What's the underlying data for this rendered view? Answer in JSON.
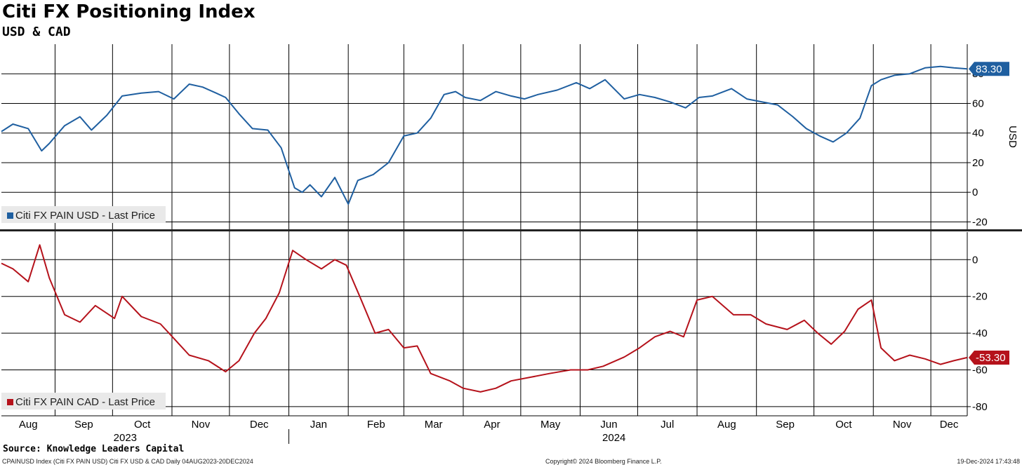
{
  "header": {
    "title": "Citi FX Positioning Index",
    "subtitle": "USD & CAD"
  },
  "footer": {
    "source": "Source: Knowledge Leaders Capital",
    "security": "CPAINUSD Index (Citi FX PAIN USD) Citi FX USD & CAD  Daily 04AUG2023-20DEC2024",
    "copyright": "Copyright© 2024 Bloomberg Finance L.P.",
    "timestamp": "19-Dec-2024 17:43:48"
  },
  "colors": {
    "usd": "#1f5fa0",
    "cad": "#b5121b"
  },
  "chart_data": [
    {
      "type": "line",
      "panel": "top",
      "x_range": [
        "2023-08-04",
        "2024-12-20"
      ],
      "x_month_labels": [
        "Aug",
        "Sep",
        "Oct",
        "Nov",
        "Dec",
        "Jan",
        "Feb",
        "Mar",
        "Apr",
        "May",
        "Jun",
        "Jul",
        "Aug",
        "Sep",
        "Oct",
        "Nov",
        "Dec"
      ],
      "x_year_labels": [
        "2023",
        "2024"
      ],
      "ylabel": "USD",
      "ylim": [
        -25,
        100
      ],
      "yticks": [
        80,
        60,
        40,
        20,
        0,
        -20
      ],
      "grid": true,
      "legend": "bottom-left",
      "series": [
        {
          "name": "Citi FX PAIN USD - Last Price",
          "color": "#1f5fa0",
          "last_value": "83.30",
          "x": [
            "2023-08-04",
            "2023-08-10",
            "2023-08-18",
            "2023-08-25",
            "2023-08-29",
            "2023-09-06",
            "2023-09-14",
            "2023-09-20",
            "2023-09-28",
            "2023-10-06",
            "2023-10-16",
            "2023-10-25",
            "2023-11-02",
            "2023-11-10",
            "2023-11-17",
            "2023-11-24",
            "2023-11-29",
            "2023-12-06",
            "2023-12-13",
            "2023-12-21",
            "2023-12-28",
            "2024-01-04",
            "2024-01-08",
            "2024-01-12",
            "2024-01-18",
            "2024-01-25",
            "2024-02-01",
            "2024-02-06",
            "2024-02-14",
            "2024-02-22",
            "2024-03-01",
            "2024-03-08",
            "2024-03-15",
            "2024-03-22",
            "2024-03-28",
            "2024-04-02",
            "2024-04-10",
            "2024-04-18",
            "2024-04-26",
            "2024-05-03",
            "2024-05-10",
            "2024-05-20",
            "2024-05-30",
            "2024-06-06",
            "2024-06-14",
            "2024-06-24",
            "2024-07-02",
            "2024-07-10",
            "2024-07-18",
            "2024-07-26",
            "2024-08-02",
            "2024-08-09",
            "2024-08-19",
            "2024-08-27",
            "2024-09-04",
            "2024-09-12",
            "2024-09-20",
            "2024-09-27",
            "2024-10-04",
            "2024-10-11",
            "2024-10-18",
            "2024-10-25",
            "2024-10-31",
            "2024-11-05",
            "2024-11-12",
            "2024-11-20",
            "2024-11-28",
            "2024-12-06",
            "2024-12-13",
            "2024-12-20"
          ],
          "values": [
            41,
            46,
            43,
            28,
            33,
            45,
            51,
            42,
            52,
            65,
            67,
            68,
            63,
            73,
            71,
            67,
            64,
            53,
            43,
            42,
            30,
            3,
            0,
            5,
            -3,
            10,
            -8,
            8,
            12,
            20,
            38,
            40,
            50,
            66,
            68,
            64,
            62,
            68,
            65,
            63,
            66,
            69,
            74,
            70,
            76,
            63,
            66,
            64,
            61,
            57,
            64,
            65,
            70,
            63,
            61,
            59,
            51,
            43,
            38,
            34,
            40,
            50,
            72,
            76,
            79,
            80,
            84,
            85,
            84,
            83.3
          ]
        }
      ]
    },
    {
      "type": "line",
      "panel": "bottom",
      "x_range": [
        "2023-08-04",
        "2024-12-20"
      ],
      "ylim": [
        -85,
        15
      ],
      "yticks": [
        0,
        -20,
        -40,
        -60,
        -80
      ],
      "grid": true,
      "legend": "bottom-left",
      "series": [
        {
          "name": "Citi FX PAIN CAD - Last Price",
          "color": "#b5121b",
          "last_value": "-53.30",
          "x": [
            "2023-08-04",
            "2023-08-10",
            "2023-08-18",
            "2023-08-24",
            "2023-08-29",
            "2023-09-06",
            "2023-09-14",
            "2023-09-22",
            "2023-10-02",
            "2023-10-06",
            "2023-10-16",
            "2023-10-26",
            "2023-11-03",
            "2023-11-10",
            "2023-11-20",
            "2023-11-29",
            "2023-12-06",
            "2023-12-14",
            "2023-12-20",
            "2023-12-27",
            "2024-01-03",
            "2024-01-10",
            "2024-01-18",
            "2024-01-25",
            "2024-01-31",
            "2024-02-07",
            "2024-02-15",
            "2024-02-22",
            "2024-03-01",
            "2024-03-08",
            "2024-03-15",
            "2024-03-25",
            "2024-04-01",
            "2024-04-10",
            "2024-04-18",
            "2024-04-26",
            "2024-05-06",
            "2024-05-16",
            "2024-05-27",
            "2024-06-05",
            "2024-06-13",
            "2024-06-24",
            "2024-07-02",
            "2024-07-10",
            "2024-07-18",
            "2024-07-25",
            "2024-08-01",
            "2024-08-09",
            "2024-08-20",
            "2024-08-29",
            "2024-09-06",
            "2024-09-17",
            "2024-09-26",
            "2024-10-03",
            "2024-10-10",
            "2024-10-17",
            "2024-10-24",
            "2024-10-31",
            "2024-11-05",
            "2024-11-12",
            "2024-11-20",
            "2024-11-28",
            "2024-12-06",
            "2024-12-13",
            "2024-12-20"
          ],
          "values": [
            -2,
            -5,
            -12,
            8,
            -10,
            -30,
            -34,
            -25,
            -32,
            -20,
            -31,
            -35,
            -44,
            -52,
            -55,
            -61,
            -55,
            -40,
            -32,
            -18,
            5,
            0,
            -5,
            0,
            -3,
            -20,
            -40,
            -38,
            -48,
            -47,
            -62,
            -66,
            -70,
            -72,
            -70,
            -66,
            -64,
            -62,
            -60,
            -60,
            -58,
            -53,
            -48,
            -42,
            -39,
            -42,
            -22,
            -20,
            -30,
            -30,
            -35,
            -38,
            -33,
            -40,
            -46,
            -39,
            -27,
            -22,
            -48,
            -55,
            -52,
            -54,
            -57,
            -55,
            -53.3
          ]
        }
      ]
    }
  ]
}
